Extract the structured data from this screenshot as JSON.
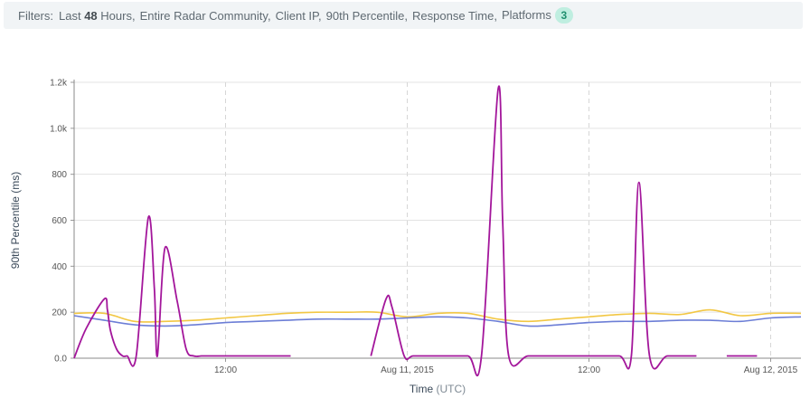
{
  "filters": {
    "label": "Filters:",
    "items": [
      {
        "prefix": "Last ",
        "bold": "48",
        "suffix": " Hours"
      },
      {
        "prefix": "Entire Radar Community",
        "bold": "",
        "suffix": ""
      },
      {
        "prefix": "Client IP",
        "bold": "",
        "suffix": ""
      },
      {
        "prefix": "90th Percentile",
        "bold": "",
        "suffix": ""
      },
      {
        "prefix": "Response Time",
        "bold": "",
        "suffix": ""
      },
      {
        "prefix": "Platforms",
        "bold": "",
        "suffix": ""
      }
    ],
    "platform_count": "3"
  },
  "chart_data": {
    "type": "line",
    "title": "",
    "ylabel": "90th Percentile (ms)",
    "xlabel_main": "Time",
    "xlabel_unit": "(UTC)",
    "ylim": [
      0,
      1200
    ],
    "xlim": [
      -10,
      38
    ],
    "grid": true,
    "yticks": [
      {
        "v": 0,
        "label": "0.0"
      },
      {
        "v": 200,
        "label": "200"
      },
      {
        "v": 400,
        "label": "400"
      },
      {
        "v": 600,
        "label": "600"
      },
      {
        "v": 800,
        "label": "800"
      },
      {
        "v": 1000,
        "label": "1.0k"
      },
      {
        "v": 1200,
        "label": "1.2k"
      }
    ],
    "xticks": [
      {
        "v": 0,
        "label": "12:00"
      },
      {
        "v": 12,
        "label": "Aug 11, 2015"
      },
      {
        "v": 24,
        "label": "12:00"
      },
      {
        "v": 36,
        "label": "Aug 12, 2015"
      }
    ],
    "series": [
      {
        "color": "#f2c744",
        "x": [
          -10,
          -8,
          -6,
          -4,
          -2,
          0,
          2,
          4,
          6,
          8,
          10,
          12,
          14,
          16,
          18,
          20,
          22,
          24,
          26,
          28,
          30,
          32,
          34,
          36,
          38
        ],
        "y": [
          195,
          195,
          160,
          160,
          165,
          175,
          185,
          195,
          200,
          200,
          200,
          180,
          195,
          195,
          170,
          160,
          170,
          180,
          190,
          195,
          190,
          210,
          185,
          195,
          195
        ]
      },
      {
        "color": "#6c7ed6",
        "x": [
          -10,
          -8,
          -6,
          -4,
          -2,
          0,
          2,
          4,
          6,
          8,
          10,
          12,
          14,
          16,
          18,
          20,
          22,
          24,
          26,
          28,
          30,
          32,
          34,
          36,
          38
        ],
        "y": [
          185,
          165,
          145,
          140,
          145,
          155,
          160,
          165,
          170,
          170,
          170,
          175,
          180,
          175,
          160,
          140,
          145,
          155,
          160,
          160,
          165,
          165,
          160,
          175,
          180
        ]
      },
      {
        "color": "#a3169b",
        "segments": [
          {
            "x": [
              -10,
              -9.2,
              -8,
              -7.8,
              -7.6,
              -7.2,
              -6.8,
              -6.5,
              -5.9,
              -5.1,
              -4.7,
              -4.5,
              -4.0,
              -3.2,
              -2.6,
              -2.1,
              -1.6,
              -1.3,
              0,
              2,
              4.3
            ],
            "y": [
              0,
              130,
              258,
              210,
              120,
              40,
              10,
              10,
              10,
              612,
              300,
              10,
              480,
              250,
              40,
              10,
              10,
              10,
              10,
              10,
              10
            ]
          },
          {
            "x": [
              9.6,
              10.6,
              11.0,
              11.8,
              12.4,
              14,
              16,
              16.9,
              18,
              18.3,
              18.7,
              20,
              22,
              24,
              26,
              26.8,
              27.3,
              28,
              29.2,
              31.1
            ],
            "y": [
              10,
              258,
              220,
              10,
              10,
              10,
              10,
              10,
              1170,
              600,
              10,
              10,
              10,
              10,
              10,
              10,
              765,
              10,
              10,
              10
            ]
          },
          {
            "x": [
              33.1,
              35.1
            ],
            "y": [
              10,
              10
            ]
          }
        ]
      }
    ]
  }
}
